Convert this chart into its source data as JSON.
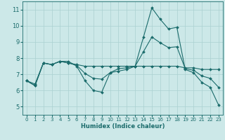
{
  "xlabel": "Humidex (Indice chaleur)",
  "xlim": [
    -0.5,
    23.5
  ],
  "ylim": [
    4.5,
    11.5
  ],
  "yticks": [
    5,
    6,
    7,
    8,
    9,
    10,
    11
  ],
  "xticks": [
    0,
    1,
    2,
    3,
    4,
    5,
    6,
    7,
    8,
    9,
    10,
    11,
    12,
    13,
    14,
    15,
    16,
    17,
    18,
    19,
    20,
    21,
    22,
    23
  ],
  "bg_color": "#cce8e8",
  "line_color": "#1a6b6b",
  "grid_color": "#aad0d0",
  "line1_y": [
    6.6,
    6.3,
    7.7,
    7.6,
    7.8,
    7.8,
    7.5,
    6.6,
    6.0,
    5.9,
    7.1,
    7.2,
    7.3,
    7.5,
    9.3,
    11.1,
    10.4,
    9.8,
    9.9,
    7.3,
    7.1,
    6.5,
    6.2,
    5.1
  ],
  "line2_y": [
    6.6,
    6.4,
    7.7,
    7.6,
    7.8,
    7.7,
    7.6,
    7.5,
    7.5,
    7.5,
    7.5,
    7.5,
    7.5,
    7.5,
    7.5,
    7.5,
    7.5,
    7.5,
    7.5,
    7.4,
    7.4,
    7.3,
    7.3,
    7.3
  ],
  "line3_y": [
    6.6,
    6.3,
    7.7,
    7.6,
    7.8,
    7.7,
    7.55,
    7.05,
    6.75,
    6.7,
    7.1,
    7.35,
    7.4,
    7.5,
    8.4,
    9.3,
    8.95,
    8.65,
    8.7,
    7.35,
    7.25,
    6.9,
    6.75,
    6.2
  ]
}
